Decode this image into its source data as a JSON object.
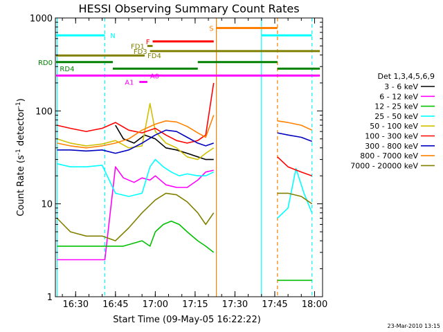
{
  "chart_data": {
    "type": "line",
    "title": "HESSI Observing Summary Count Rates",
    "ylabel": "Count Rate (s⁻¹ detector⁻¹)",
    "ylabel_parts": [
      "Count Rate (s",
      "-1",
      " detector",
      "-1",
      ")"
    ],
    "xlabel": "Start Time (09-May-05 16:22:22)",
    "yscale": "log",
    "ylim": [
      1,
      1000
    ],
    "xlim": [
      "16:22",
      "18:03"
    ],
    "y_ticks": [
      1,
      10,
      100,
      1000
    ],
    "x_ticks": [
      "16:30",
      "16:45",
      "17:00",
      "17:15",
      "17:30",
      "17:45",
      "18:00"
    ],
    "legend_title": "Det 1,3,4,5,6,9",
    "legend_position": "right",
    "stamp": "23-Mar-2010 13:15",
    "series": [
      {
        "name": "3 - 6 keV",
        "color": "#000000",
        "points": [
          [
            "16:45",
            70
          ],
          [
            "16:48",
            50
          ],
          [
            "16:52",
            45
          ],
          [
            "16:56",
            55
          ],
          [
            "17:00",
            50
          ],
          [
            "17:04",
            40
          ],
          [
            "17:08",
            38
          ],
          [
            "17:12",
            35
          ],
          [
            "17:16",
            32
          ],
          [
            "17:19",
            30
          ],
          [
            "17:22",
            30
          ]
        ]
      },
      {
        "name": "6 - 12 keV",
        "color": "#ff00ff",
        "points": [
          [
            "16:23",
            2.5
          ],
          [
            "16:30",
            2.5
          ],
          [
            "16:36",
            2.5
          ],
          [
            "16:41",
            2.5
          ],
          [
            "16:45",
            25
          ],
          [
            "16:48",
            19
          ],
          [
            "16:52",
            17
          ],
          [
            "16:55",
            19
          ],
          [
            "16:58",
            18
          ],
          [
            "17:00",
            20
          ],
          [
            "17:04",
            16
          ],
          [
            "17:08",
            15
          ],
          [
            "17:12",
            15
          ],
          [
            "17:16",
            18
          ],
          [
            "17:19",
            22
          ],
          [
            "17:22",
            23
          ]
        ]
      },
      {
        "name": "12 - 25 keV",
        "color": "#00c000",
        "points": [
          [
            "16:23",
            3.5
          ],
          [
            "16:30",
            3.5
          ],
          [
            "16:36",
            3.5
          ],
          [
            "16:42",
            3.5
          ],
          [
            "16:48",
            3.5
          ],
          [
            "16:55",
            4
          ],
          [
            "16:58",
            3.5
          ],
          [
            "17:00",
            5
          ],
          [
            "17:03",
            6
          ],
          [
            "17:06",
            6.5
          ],
          [
            "17:09",
            6
          ],
          [
            "17:12",
            5
          ],
          [
            "17:16",
            4
          ],
          [
            "17:19",
            3.5
          ],
          [
            "17:22",
            3
          ],
          [
            "17:46",
            1.5
          ],
          [
            "17:50",
            1.5
          ],
          [
            "17:55",
            1.5
          ],
          [
            "17:59",
            1.5
          ]
        ]
      },
      {
        "name": "25 - 50 keV",
        "color": "#00ffff",
        "points": [
          [
            "16:23",
            27
          ],
          [
            "16:28",
            25
          ],
          [
            "16:34",
            25
          ],
          [
            "16:40",
            26
          ],
          [
            "16:45",
            13
          ],
          [
            "16:50",
            12
          ],
          [
            "16:55",
            13
          ],
          [
            "16:58",
            25
          ],
          [
            "17:00",
            30
          ],
          [
            "17:03",
            25
          ],
          [
            "17:06",
            22
          ],
          [
            "17:09",
            20
          ],
          [
            "17:12",
            21
          ],
          [
            "17:16",
            20
          ],
          [
            "17:19",
            20
          ],
          [
            "17:22",
            22
          ],
          [
            "17:46",
            7
          ],
          [
            "17:50",
            9
          ],
          [
            "17:53",
            24
          ],
          [
            "17:56",
            13
          ],
          [
            "17:59",
            8
          ]
        ]
      },
      {
        "name": "50 - 100 keV",
        "color": "#d0c000",
        "points": [
          [
            "16:23",
            50
          ],
          [
            "16:28",
            45
          ],
          [
            "16:34",
            42
          ],
          [
            "16:40",
            44
          ],
          [
            "16:45",
            48
          ],
          [
            "16:50",
            40
          ],
          [
            "16:55",
            42
          ],
          [
            "16:58",
            120
          ],
          [
            "17:00",
            60
          ],
          [
            "17:04",
            45
          ],
          [
            "17:08",
            40
          ],
          [
            "17:12",
            32
          ],
          [
            "17:16",
            30
          ],
          [
            "17:19",
            35
          ],
          [
            "17:22",
            40
          ]
        ]
      },
      {
        "name": "100 - 300 keV",
        "color": "#ff0000",
        "points": [
          [
            "16:23",
            70
          ],
          [
            "16:28",
            65
          ],
          [
            "16:34",
            60
          ],
          [
            "16:40",
            65
          ],
          [
            "16:45",
            75
          ],
          [
            "16:50",
            62
          ],
          [
            "16:55",
            58
          ],
          [
            "17:00",
            65
          ],
          [
            "17:04",
            55
          ],
          [
            "17:08",
            48
          ],
          [
            "17:12",
            45
          ],
          [
            "17:16",
            48
          ],
          [
            "17:19",
            55
          ],
          [
            "17:22",
            200
          ],
          [
            "17:46",
            32
          ],
          [
            "17:50",
            25
          ],
          [
            "17:55",
            22
          ],
          [
            "17:59",
            20
          ]
        ]
      },
      {
        "name": "300 - 800 keV",
        "color": "#0000c0",
        "points": [
          [
            "16:23",
            38
          ],
          [
            "16:28",
            38
          ],
          [
            "16:34",
            37
          ],
          [
            "16:40",
            38
          ],
          [
            "16:45",
            35
          ],
          [
            "16:50",
            38
          ],
          [
            "16:55",
            45
          ],
          [
            "17:00",
            55
          ],
          [
            "17:04",
            62
          ],
          [
            "17:08",
            60
          ],
          [
            "17:12",
            52
          ],
          [
            "17:16",
            45
          ],
          [
            "17:19",
            42
          ],
          [
            "17:22",
            45
          ],
          [
            "17:46",
            58
          ],
          [
            "17:50",
            55
          ],
          [
            "17:55",
            52
          ],
          [
            "17:59",
            47
          ]
        ]
      },
      {
        "name": "800 - 7000 keV",
        "color": "#ff8000",
        "points": [
          [
            "16:23",
            45
          ],
          [
            "16:28",
            42
          ],
          [
            "16:34",
            40
          ],
          [
            "16:40",
            42
          ],
          [
            "16:45",
            45
          ],
          [
            "16:50",
            50
          ],
          [
            "16:55",
            62
          ],
          [
            "17:00",
            72
          ],
          [
            "17:04",
            78
          ],
          [
            "17:08",
            76
          ],
          [
            "17:12",
            68
          ],
          [
            "17:16",
            58
          ],
          [
            "17:19",
            52
          ],
          [
            "17:22",
            90
          ],
          [
            "17:46",
            78
          ],
          [
            "17:50",
            75
          ],
          [
            "17:55",
            70
          ],
          [
            "17:59",
            62
          ]
        ]
      },
      {
        "name": "7000 - 20000 keV",
        "color": "#808000",
        "points": [
          [
            "16:23",
            7
          ],
          [
            "16:28",
            5
          ],
          [
            "16:34",
            4.5
          ],
          [
            "16:40",
            4.5
          ],
          [
            "16:45",
            4
          ],
          [
            "16:50",
            5.5
          ],
          [
            "16:55",
            8
          ],
          [
            "17:00",
            11
          ],
          [
            "17:04",
            13
          ],
          [
            "17:08",
            12.5
          ],
          [
            "17:12",
            10.5
          ],
          [
            "17:16",
            8
          ],
          [
            "17:19",
            6
          ],
          [
            "17:22",
            8
          ],
          [
            "17:46",
            13
          ],
          [
            "17:50",
            13
          ],
          [
            "17:55",
            12
          ],
          [
            "17:59",
            10
          ]
        ]
      }
    ],
    "vertical_lines": [
      {
        "time": "16:23",
        "color": "#00ffff",
        "style": "solid"
      },
      {
        "time": "16:41",
        "color": "#00ffff",
        "style": "dashed"
      },
      {
        "time": "17:23",
        "color": "#ff8000",
        "style": "solid"
      },
      {
        "time": "17:40",
        "color": "#00ffff",
        "style": "solid"
      },
      {
        "time": "17:46",
        "color": "#ff8000",
        "style": "dashed"
      },
      {
        "time": "17:59",
        "color": "#00ffff",
        "style": "dashed"
      }
    ],
    "flag_bars": [
      {
        "label": "N",
        "color": "#00ffff",
        "level": 650,
        "segments": [
          [
            "16:22",
            "16:41"
          ],
          [
            "17:40",
            "17:59"
          ]
        ],
        "label_at": "16:42",
        "label_side": "right"
      },
      {
        "label": "S",
        "color": "#ff8000",
        "level": 780,
        "segments": [
          [
            "17:23",
            "17:46"
          ]
        ],
        "label_at": "17:23",
        "label_side": "left"
      },
      {
        "label": "F",
        "color": "#ff0000",
        "level": 560,
        "segments": [
          [
            "16:59",
            "17:22"
          ]
        ],
        "label_at": "16:59",
        "label_side": "left"
      },
      {
        "label": "FD1",
        "color": "#808000",
        "level": 500,
        "segments": [
          [
            "16:57",
            "16:59"
          ]
        ],
        "label_at": "16:57",
        "label_side": "left"
      },
      {
        "label": "FD3",
        "color": "#808000",
        "level": 440,
        "segments": [
          [
            "16:58",
            "18:02"
          ]
        ],
        "label_at": "16:58",
        "label_side": "left"
      },
      {
        "label": "FD4",
        "color": "#808000",
        "level": 395,
        "segments": [
          [
            "16:22",
            "16:56"
          ]
        ],
        "label_at": "16:56",
        "label_side": "right"
      },
      {
        "label": "RD0",
        "color": "#008000",
        "level": 335,
        "segments": [
          [
            "16:22",
            "16:44"
          ],
          [
            "17:16",
            "17:46"
          ]
        ],
        "label_at": "16:22",
        "label_side": "left"
      },
      {
        "label": "RD4",
        "color": "#008000",
        "level": 285,
        "segments": [
          [
            "16:44",
            "17:16"
          ],
          [
            "17:46",
            "18:02"
          ]
        ],
        "label_at": "16:23",
        "label_side": "right"
      },
      {
        "label": "A0",
        "color": "#ff00ff",
        "level": 240,
        "segments": [
          [
            "16:22",
            "18:02"
          ]
        ],
        "label_at": "16:57",
        "label_side": "right"
      },
      {
        "label": "A1",
        "color": "#ff00ff",
        "level": 205,
        "segments": [
          [
            "16:54",
            "16:57"
          ]
        ],
        "label_at": "16:53",
        "label_side": "left"
      }
    ]
  }
}
